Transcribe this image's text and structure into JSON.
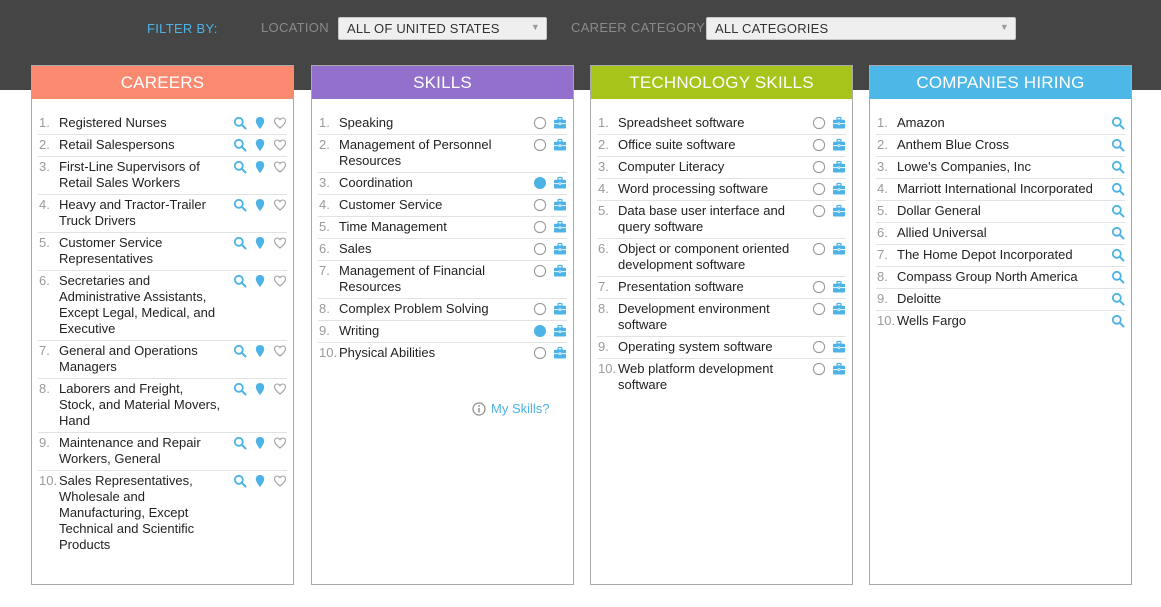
{
  "filter": {
    "label": "FILTER BY:",
    "location_label": "LOCATION",
    "location_value": "ALL OF UNITED STATES",
    "category_label": "CAREER CATEGORY",
    "category_value": "ALL CATEGORIES"
  },
  "colors": {
    "careers": "#f98a70",
    "skills": "#9370cc",
    "tech": "#a6c419",
    "companies": "#4db8e8",
    "icon_blue": "#4db3e6"
  },
  "careers": {
    "title": "CAREERS",
    "items": [
      {
        "num": "1.",
        "label": "Registered Nurses"
      },
      {
        "num": "2.",
        "label": "Retail Salespersons"
      },
      {
        "num": "3.",
        "label": "First-Line Supervisors of Retail Sales Workers"
      },
      {
        "num": "4.",
        "label": "Heavy and Tractor-Trailer Truck Drivers"
      },
      {
        "num": "5.",
        "label": "Customer Service Representatives"
      },
      {
        "num": "6.",
        "label": "Secretaries and Administrative Assistants, Except Legal, Medical, and Executive"
      },
      {
        "num": "7.",
        "label": "General and Operations Managers"
      },
      {
        "num": "8.",
        "label": "Laborers and Freight, Stock, and Material Movers, Hand"
      },
      {
        "num": "9.",
        "label": "Maintenance and Repair Workers, General"
      },
      {
        "num": "10.",
        "label": "Sales Representatives, Wholesale and Manufacturing, Except Technical and Scientific Products"
      }
    ]
  },
  "skills": {
    "title": "SKILLS",
    "my_skills": "My Skills?",
    "items": [
      {
        "num": "1.",
        "label": "Speaking",
        "selected": false
      },
      {
        "num": "2.",
        "label": "Management of Personnel Resources",
        "selected": false
      },
      {
        "num": "3.",
        "label": "Coordination",
        "selected": true
      },
      {
        "num": "4.",
        "label": "Customer Service",
        "selected": false
      },
      {
        "num": "5.",
        "label": "Time Management",
        "selected": false
      },
      {
        "num": "6.",
        "label": "Sales",
        "selected": false
      },
      {
        "num": "7.",
        "label": "Management of Financial Resources",
        "selected": false
      },
      {
        "num": "8.",
        "label": "Complex Problem Solving",
        "selected": false
      },
      {
        "num": "9.",
        "label": "Writing",
        "selected": true
      },
      {
        "num": "10.",
        "label": "Physical Abilities",
        "selected": false
      }
    ]
  },
  "tech": {
    "title": "TECHNOLOGY SKILLS",
    "items": [
      {
        "num": "1.",
        "label": "Spreadsheet software",
        "selected": false
      },
      {
        "num": "2.",
        "label": "Office suite software",
        "selected": false
      },
      {
        "num": "3.",
        "label": "Computer Literacy",
        "selected": false
      },
      {
        "num": "4.",
        "label": "Word processing software",
        "selected": false
      },
      {
        "num": "5.",
        "label": "Data base user interface and query software",
        "selected": false
      },
      {
        "num": "6.",
        "label": "Object or component oriented development software",
        "selected": false
      },
      {
        "num": "7.",
        "label": "Presentation software",
        "selected": false
      },
      {
        "num": "8.",
        "label": "Development environment software",
        "selected": false
      },
      {
        "num": "9.",
        "label": "Operating system software",
        "selected": false
      },
      {
        "num": "10.",
        "label": "Web platform development software",
        "selected": false
      }
    ]
  },
  "companies": {
    "title": "COMPANIES HIRING",
    "items": [
      {
        "num": "1.",
        "label": "Amazon"
      },
      {
        "num": "2.",
        "label": "Anthem Blue Cross"
      },
      {
        "num": "3.",
        "label": "Lowe's Companies, Inc"
      },
      {
        "num": "4.",
        "label": "Marriott International Incorporated"
      },
      {
        "num": "5.",
        "label": "Dollar General"
      },
      {
        "num": "6.",
        "label": "Allied Universal"
      },
      {
        "num": "7.",
        "label": "The Home Depot Incorporated"
      },
      {
        "num": "8.",
        "label": "Compass Group North America"
      },
      {
        "num": "9.",
        "label": "Deloitte"
      },
      {
        "num": "10.",
        "label": "Wells Fargo"
      }
    ]
  }
}
